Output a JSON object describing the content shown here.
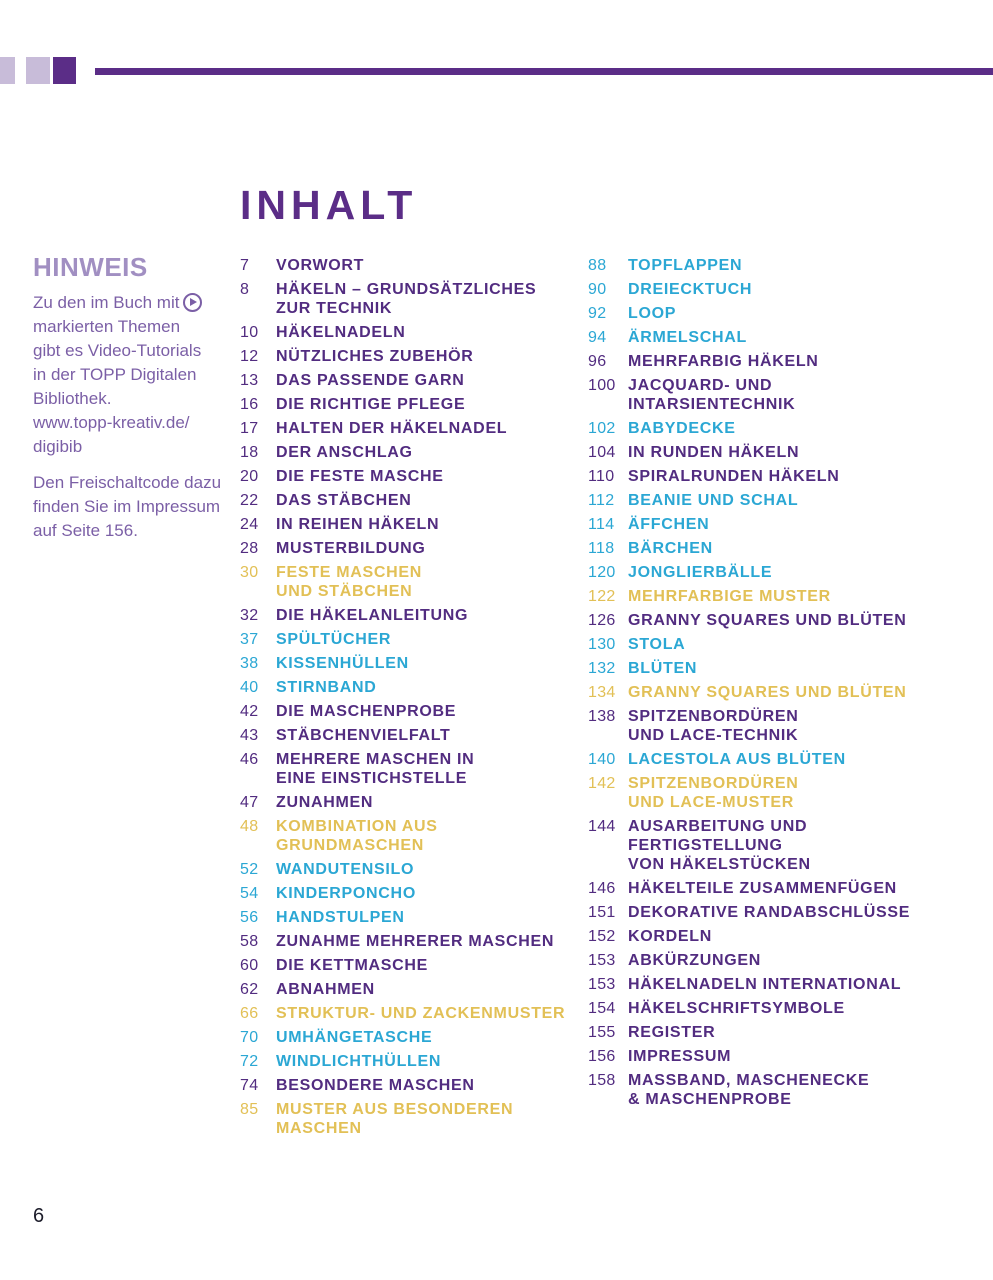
{
  "page": {
    "title": "INHALT",
    "number": "6"
  },
  "colors": {
    "accent_dark_purple": "#5b2d87",
    "accent_light_purple": "#c8bcd9",
    "toc_purple": "#522c80",
    "toc_teal": "#2ba7d4",
    "toc_yellow": "#e2c056",
    "hinweis_heading": "#a18fc2",
    "hinweis_body": "#7b5fa6"
  },
  "hinweis": {
    "heading": "HINWEIS",
    "line1": "Zu den im Buch mit",
    "play_icon": "play-icon",
    "rest": "markierten Themen\ngibt es Video-Tutorials\nin der TOPP Digitalen\nBibliothek.\nwww.topp-kreativ.de/\ndigibib",
    "para2": "Den Freischaltcode dazu\nfinden Sie im Impressum\nauf Seite 156."
  },
  "toc": {
    "left": [
      {
        "num": "7",
        "title": "VORWORT",
        "color": "purple"
      },
      {
        "num": "8",
        "title": "HÄKELN – GRUNDSÄTZLICHES\nZUR TECHNIK",
        "color": "purple"
      },
      {
        "num": "10",
        "title": "HÄKELNADELN",
        "color": "purple"
      },
      {
        "num": "12",
        "title": "NÜTZLICHES ZUBEHÖR",
        "color": "purple"
      },
      {
        "num": "13",
        "title": "DAS PASSENDE GARN",
        "color": "purple"
      },
      {
        "num": "16",
        "title": "DIE RICHTIGE PFLEGE",
        "color": "purple"
      },
      {
        "num": "17",
        "title": "HALTEN DER HÄKELNADEL",
        "color": "purple"
      },
      {
        "num": "18",
        "title": "DER ANSCHLAG",
        "color": "purple"
      },
      {
        "num": "20",
        "title": "DIE FESTE MASCHE",
        "color": "purple"
      },
      {
        "num": "22",
        "title": "DAS STÄBCHEN",
        "color": "purple"
      },
      {
        "num": "24",
        "title": "IN REIHEN HÄKELN",
        "color": "purple"
      },
      {
        "num": "28",
        "title": "MUSTERBILDUNG",
        "color": "purple"
      },
      {
        "num": "30",
        "title": "FESTE MASCHEN\nUND STÄBCHEN",
        "color": "yellow"
      },
      {
        "num": "32",
        "title": "DIE HÄKELANLEITUNG",
        "color": "purple"
      },
      {
        "num": "37",
        "title": "SPÜLTÜCHER",
        "color": "teal"
      },
      {
        "num": "38",
        "title": "KISSENHÜLLEN",
        "color": "teal"
      },
      {
        "num": "40",
        "title": "STIRNBAND",
        "color": "teal"
      },
      {
        "num": "42",
        "title": "DIE MASCHENPROBE",
        "color": "purple"
      },
      {
        "num": "43",
        "title": "STÄBCHENVIELFALT",
        "color": "purple"
      },
      {
        "num": "46",
        "title": "MEHRERE MASCHEN IN\nEINE EINSTICHSTELLE",
        "color": "purple"
      },
      {
        "num": "47",
        "title": "ZUNAHMEN",
        "color": "purple"
      },
      {
        "num": "48",
        "title": "KOMBINATION AUS\nGRUNDMASCHEN",
        "color": "yellow"
      },
      {
        "num": "52",
        "title": "WANDUTENSILO",
        "color": "teal"
      },
      {
        "num": "54",
        "title": "KINDERPONCHO",
        "color": "teal"
      },
      {
        "num": "56",
        "title": "HANDSTULPEN",
        "color": "teal"
      },
      {
        "num": "58",
        "title": "ZUNAHME MEHRERER MASCHEN",
        "color": "purple"
      },
      {
        "num": "60",
        "title": "DIE KETTMASCHE",
        "color": "purple"
      },
      {
        "num": "62",
        "title": "ABNAHMEN",
        "color": "purple"
      },
      {
        "num": "66",
        "title": "STRUKTUR- UND ZACKENMUSTER",
        "color": "yellow"
      },
      {
        "num": "70",
        "title": "UMHÄNGETASCHE",
        "color": "teal"
      },
      {
        "num": "72",
        "title": "WINDLICHTHÜLLEN",
        "color": "teal"
      },
      {
        "num": "74",
        "title": "BESONDERE MASCHEN",
        "color": "purple"
      },
      {
        "num": "85",
        "title": "MUSTER AUS BESONDEREN\nMASCHEN",
        "color": "yellow"
      }
    ],
    "right": [
      {
        "num": "88",
        "title": "TOPFLAPPEN",
        "color": "teal"
      },
      {
        "num": "90",
        "title": "DREIECKTUCH",
        "color": "teal"
      },
      {
        "num": "92",
        "title": "LOOP",
        "color": "teal"
      },
      {
        "num": "94",
        "title": "ÄRMELSCHAL",
        "color": "teal"
      },
      {
        "num": "96",
        "title": "MEHRFARBIG HÄKELN",
        "color": "purple"
      },
      {
        "num": "100",
        "title": "JACQUARD- UND\nINTARSIENTECHNIK",
        "color": "purple"
      },
      {
        "num": "102",
        "title": "BABYDECKE",
        "color": "teal"
      },
      {
        "num": "104",
        "title": "IN RUNDEN HÄKELN",
        "color": "purple"
      },
      {
        "num": "110",
        "title": "SPIRALRUNDEN HÄKELN",
        "color": "purple"
      },
      {
        "num": "112",
        "title": "BEANIE UND SCHAL",
        "color": "teal"
      },
      {
        "num": "114",
        "title": "ÄFFCHEN",
        "color": "teal"
      },
      {
        "num": "118",
        "title": "BÄRCHEN",
        "color": "teal"
      },
      {
        "num": "120",
        "title": "JONGLIERBÄLLE",
        "color": "teal"
      },
      {
        "num": "122",
        "title": "MEHRFARBIGE MUSTER",
        "color": "yellow"
      },
      {
        "num": "126",
        "title": "GRANNY SQUARES UND BLÜTEN",
        "color": "purple"
      },
      {
        "num": "130",
        "title": "STOLA",
        "color": "teal"
      },
      {
        "num": "132",
        "title": "BLÜTEN",
        "color": "teal"
      },
      {
        "num": "134",
        "title": "GRANNY SQUARES UND BLÜTEN",
        "color": "yellow"
      },
      {
        "num": "138",
        "title": "SPITZENBORDÜREN\nUND LACE-TECHNIK",
        "color": "purple"
      },
      {
        "num": "140",
        "title": "LACESTOLA AUS BLÜTEN",
        "color": "teal"
      },
      {
        "num": "142",
        "title": "SPITZENBORDÜREN\nUND LACE-MUSTER",
        "color": "yellow"
      },
      {
        "num": "144",
        "title": "AUSARBEITUNG UND\nFERTIGSTELLUNG\nVON HÄKELSTÜCKEN",
        "color": "purple"
      },
      {
        "num": "146",
        "title": "HÄKELTEILE ZUSAMMENFÜGEN",
        "color": "purple"
      },
      {
        "num": "151",
        "title": "DEKORATIVE RANDABSCHLÜSSE",
        "color": "purple"
      },
      {
        "num": "152",
        "title": "KORDELN",
        "color": "purple"
      },
      {
        "num": "153",
        "title": "ABKÜRZUNGEN",
        "color": "purple"
      },
      {
        "num": "153",
        "title": "HÄKELNADELN INTERNATIONAL",
        "color": "purple"
      },
      {
        "num": "154",
        "title": "HÄKELSCHRIFTSYMBOLE",
        "color": "purple"
      },
      {
        "num": "155",
        "title": "REGISTER",
        "color": "purple"
      },
      {
        "num": "156",
        "title": "IMPRESSUM",
        "color": "purple"
      },
      {
        "num": "158",
        "title": "MASSBAND, MASCHENECKE\n& MASCHENPROBE",
        "color": "purple"
      }
    ]
  }
}
